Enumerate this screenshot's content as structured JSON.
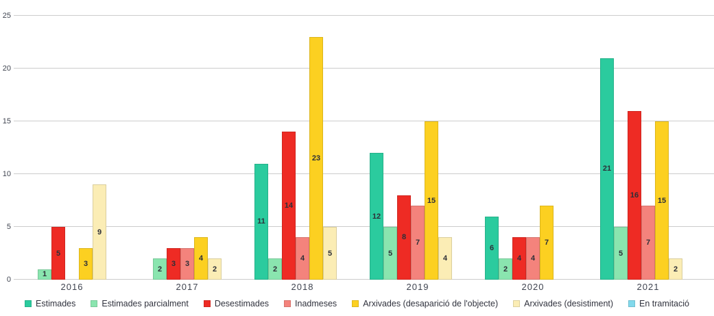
{
  "chart_data": {
    "type": "bar",
    "title": "",
    "xlabel": "",
    "ylabel": "",
    "categories": [
      "2016",
      "2017",
      "2018",
      "2019",
      "2020",
      "2021"
    ],
    "series": [
      {
        "name": "Estimades",
        "color": "#2BCB9E",
        "values": [
          0,
          0,
          11,
          12,
          6,
          21
        ]
      },
      {
        "name": "Estimades parcialment",
        "color": "#8AE5AF",
        "values": [
          1,
          2,
          2,
          5,
          2,
          5
        ]
      },
      {
        "name": "Desestimades",
        "color": "#EE2B24",
        "values": [
          5,
          3,
          14,
          8,
          4,
          16
        ]
      },
      {
        "name": "Inadmeses",
        "color": "#F4837C",
        "values": [
          0,
          3,
          4,
          7,
          4,
          7
        ]
      },
      {
        "name": "Arxivades (desaparició de l'objecte)",
        "color": "#FCD021",
        "values": [
          3,
          4,
          23,
          15,
          7,
          15
        ]
      },
      {
        "name": "Arxivades (desistiment)",
        "color": "#FBEDB5",
        "values": [
          9,
          2,
          5,
          4,
          0,
          2
        ]
      },
      {
        "name": "En tramitació",
        "color": "#82D9EC",
        "values": [
          0,
          0,
          0,
          0,
          0,
          0
        ]
      }
    ],
    "y_ticks": [
      0,
      5,
      10,
      15,
      20,
      25
    ],
    "ylim": [
      0,
      25
    ],
    "grid": true,
    "legend_position": "bottom",
    "show_value_labels": true
  },
  "style": {
    "gridline_color": "#cccccc",
    "axis_text_color": "#3f4450",
    "value_label_color": "#2d2f38",
    "background": "#ffffff"
  }
}
